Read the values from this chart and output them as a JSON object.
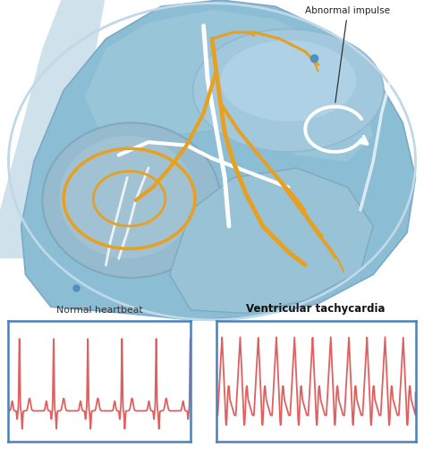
{
  "label_normal": "Normal heartbeat",
  "label_tachy": "Ventricular tachycardia",
  "label_abnormal": "Abnormal impulse",
  "ecg_color": "#E06060",
  "box_edge_color": "#4A80BB",
  "heart_bg": "#CADEED",
  "heart_mid": "#A8C8E0",
  "heart_inner": "#B8D8EE",
  "heart_dark": "#7AAAC8",
  "heart_outline": "#7AAAC8",
  "heart_white": "#D8EEF8",
  "gold": "#E8A020",
  "white": "#FFFFFF",
  "text_dark": "#333333",
  "fig_bg": "#FFFFFF",
  "fig_width": 4.74,
  "fig_height": 5.09
}
